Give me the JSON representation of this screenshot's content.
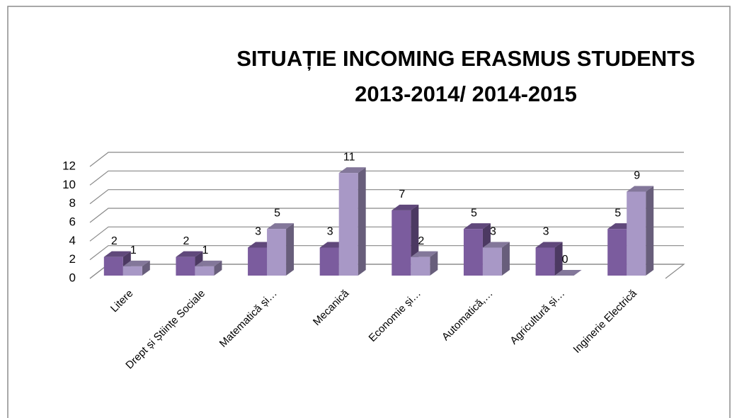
{
  "chart_data": {
    "type": "bar3d",
    "title": [
      "SITUAȚIE INCOMING ERASMUS STUDENTS",
      "2013-2014/ 2014-2015"
    ],
    "categories": [
      "Litere",
      "Drept și Științe Sociale",
      "Matematică și…",
      "Mecanică",
      "Economie și…",
      "Automatică,…",
      "Agricultură și…",
      "Inginerie Electrică"
    ],
    "series": [
      {
        "color": "#7b5c9e",
        "values": [
          2,
          2,
          3,
          3,
          7,
          5,
          3,
          5
        ]
      },
      {
        "color": "#a898c6",
        "values": [
          1,
          1,
          5,
          11,
          2,
          3,
          0,
          9
        ]
      }
    ],
    "ylim": [
      0,
      12
    ],
    "yticks": [
      0,
      2,
      4,
      6,
      8,
      10,
      12
    ],
    "grid": true
  }
}
